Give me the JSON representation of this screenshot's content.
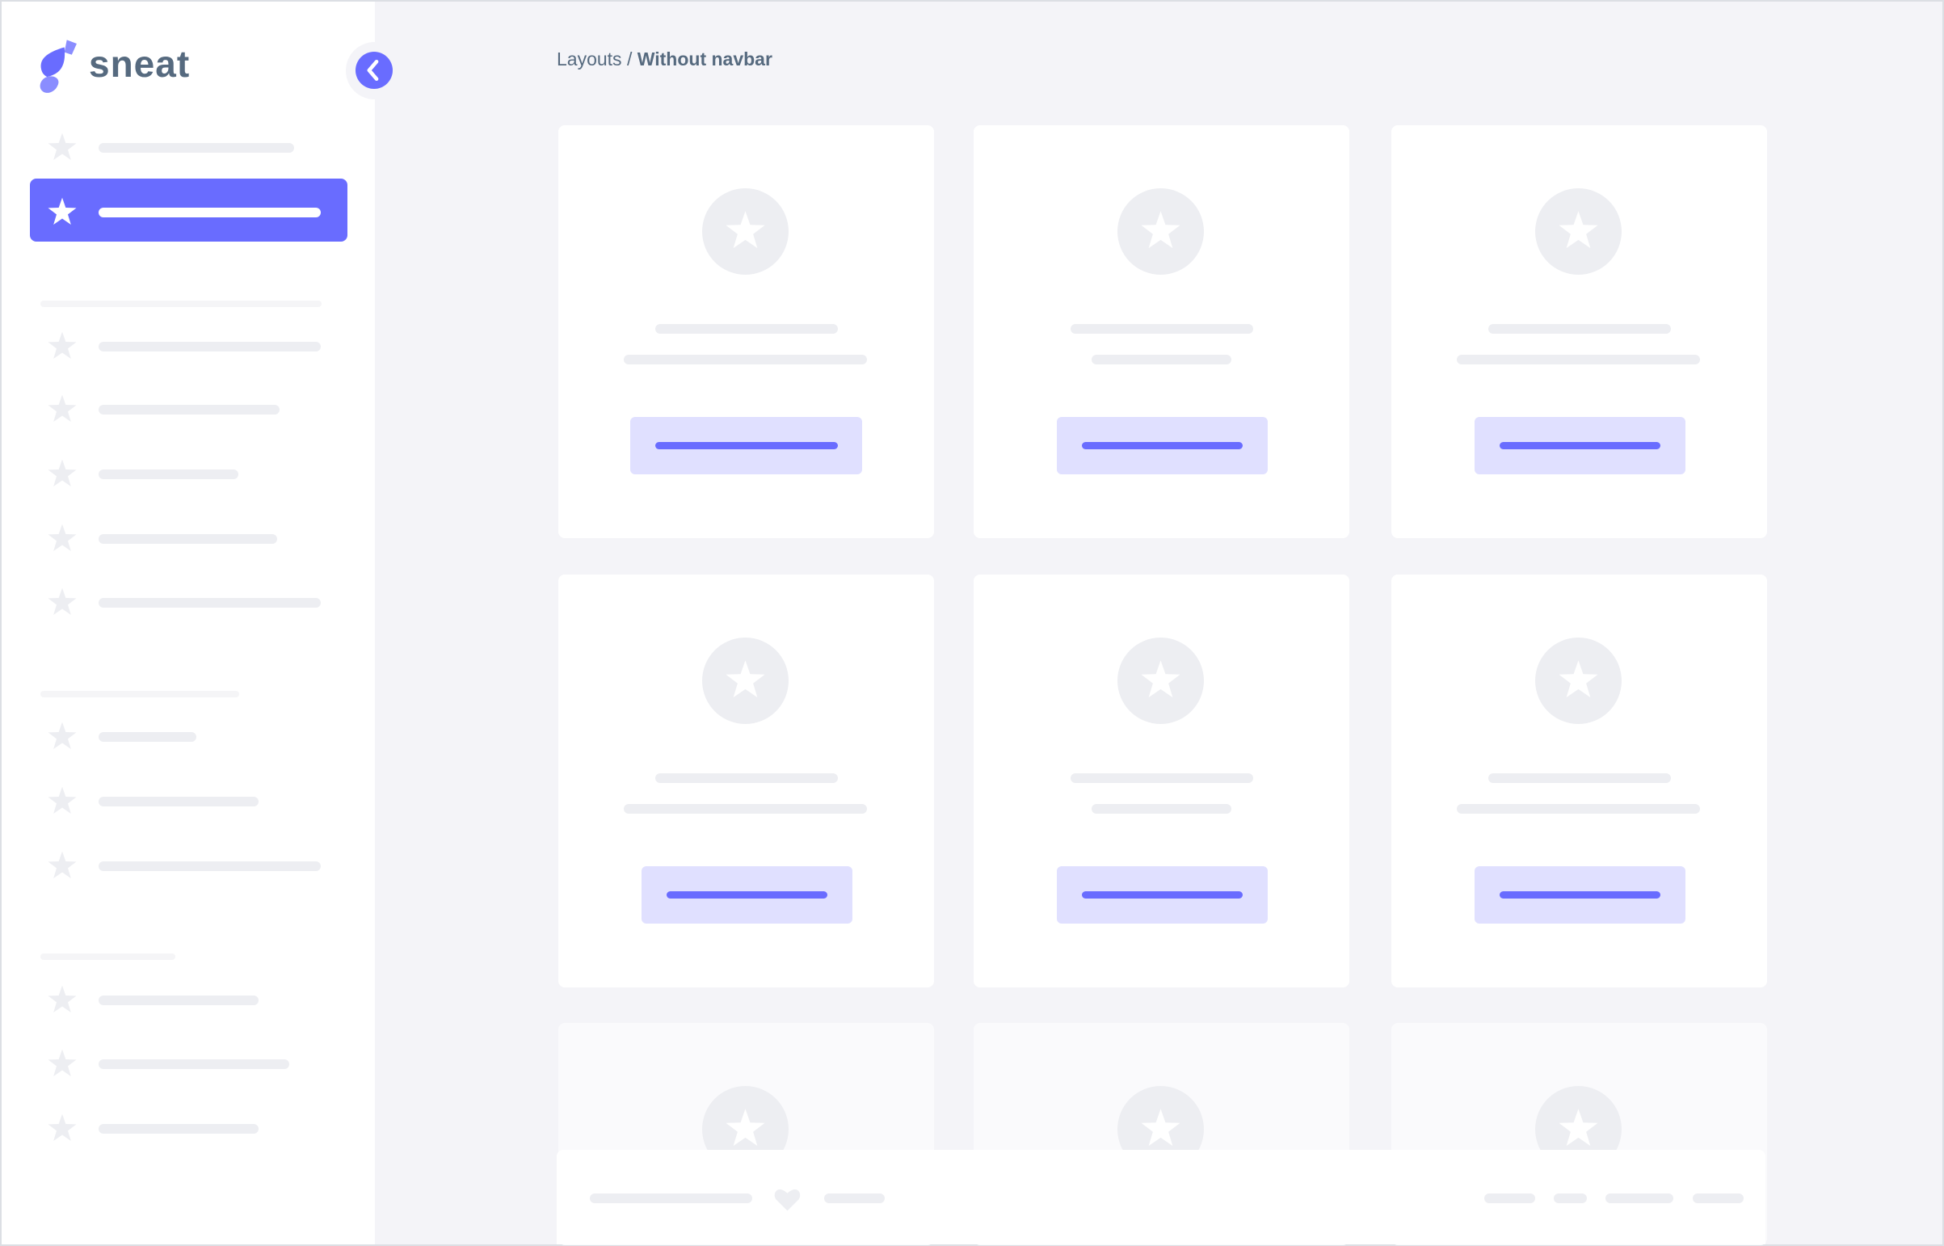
{
  "brand": {
    "name": "sneat",
    "logo_color": "#696cff",
    "text_color": "#566a7f"
  },
  "sidebar": {
    "collapse_button_icon": "chevron-left-icon",
    "active_item_index": 1,
    "item_icon": "star-icon",
    "groups": [
      {
        "items": 2
      },
      {
        "items": 5
      },
      {
        "items": 3
      },
      {
        "items": 3
      }
    ]
  },
  "breadcrumb": {
    "parent": "Layouts",
    "separator": "/",
    "current": "Without navbar"
  },
  "content": {
    "cards_per_row": 3,
    "rows_visible": 3,
    "card_icon": "star-icon"
  },
  "footer": {
    "icon": "heart-icon"
  },
  "colors": {
    "primary": "#696cff",
    "primary_light": "#e0e0ff",
    "background": "#f4f4f8",
    "skeleton": "#edeef2",
    "surface": "#ffffff"
  }
}
